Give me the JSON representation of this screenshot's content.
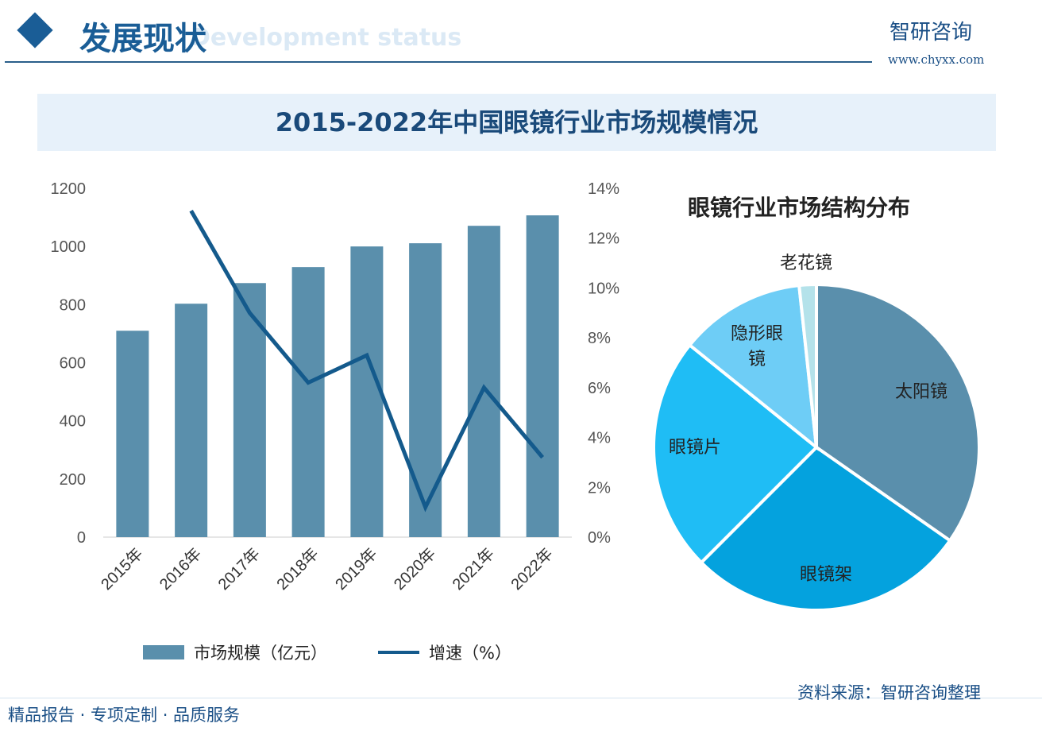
{
  "header": {
    "title": "发展现状",
    "subtitle": "Development status",
    "brand": "智研咨询",
    "url": "www.chyxx.com"
  },
  "main_title": "2015-2022年中国眼镜行业市场规模情况",
  "chart_data": [
    {
      "type": "bar+line",
      "categories": [
        "2015年",
        "2016年",
        "2017年",
        "2018年",
        "2019年",
        "2020年",
        "2021年",
        "2022年"
      ],
      "series": [
        {
          "name": "市场规模（亿元）",
          "type": "bar",
          "axis": "left",
          "color": "#5a8fac",
          "values": [
            710,
            803,
            874,
            929,
            1000,
            1011,
            1071,
            1107
          ]
        },
        {
          "name": "增速（%）",
          "type": "line",
          "axis": "right",
          "color": "#145a8c",
          "values": [
            null,
            13.1,
            9.0,
            6.2,
            7.3,
            1.2,
            6.0,
            3.2
          ]
        }
      ],
      "ylim": [
        0,
        1200
      ],
      "yticks": [
        "0",
        "200",
        "400",
        "600",
        "800",
        "1000",
        "1200"
      ],
      "y2lim": [
        0,
        14
      ],
      "y2ticks": [
        "0%",
        "2%",
        "4%",
        "6%",
        "8%",
        "10%",
        "12%",
        "14%"
      ],
      "legend_position": "bottom",
      "grid": false
    },
    {
      "type": "pie",
      "title": "眼镜行业市场结构分布",
      "slices": [
        {
          "label": "太阳镜",
          "value": 34.7,
          "color": "#5a8fac"
        },
        {
          "label": "眼镜架",
          "value": 27.8,
          "color": "#04a2de"
        },
        {
          "label": "眼镜片",
          "value": 23.3,
          "color": "#1fbdf5"
        },
        {
          "label": "隐形眼镜",
          "value": 12.5,
          "color": "#6ecdf6"
        },
        {
          "label": "老花镜",
          "value": 1.7,
          "color": "#b4e2ea"
        }
      ]
    }
  ],
  "footer": {
    "left": "精品报告 · 专项定制 · 品质服务",
    "source": "资料来源：智研咨询整理"
  }
}
